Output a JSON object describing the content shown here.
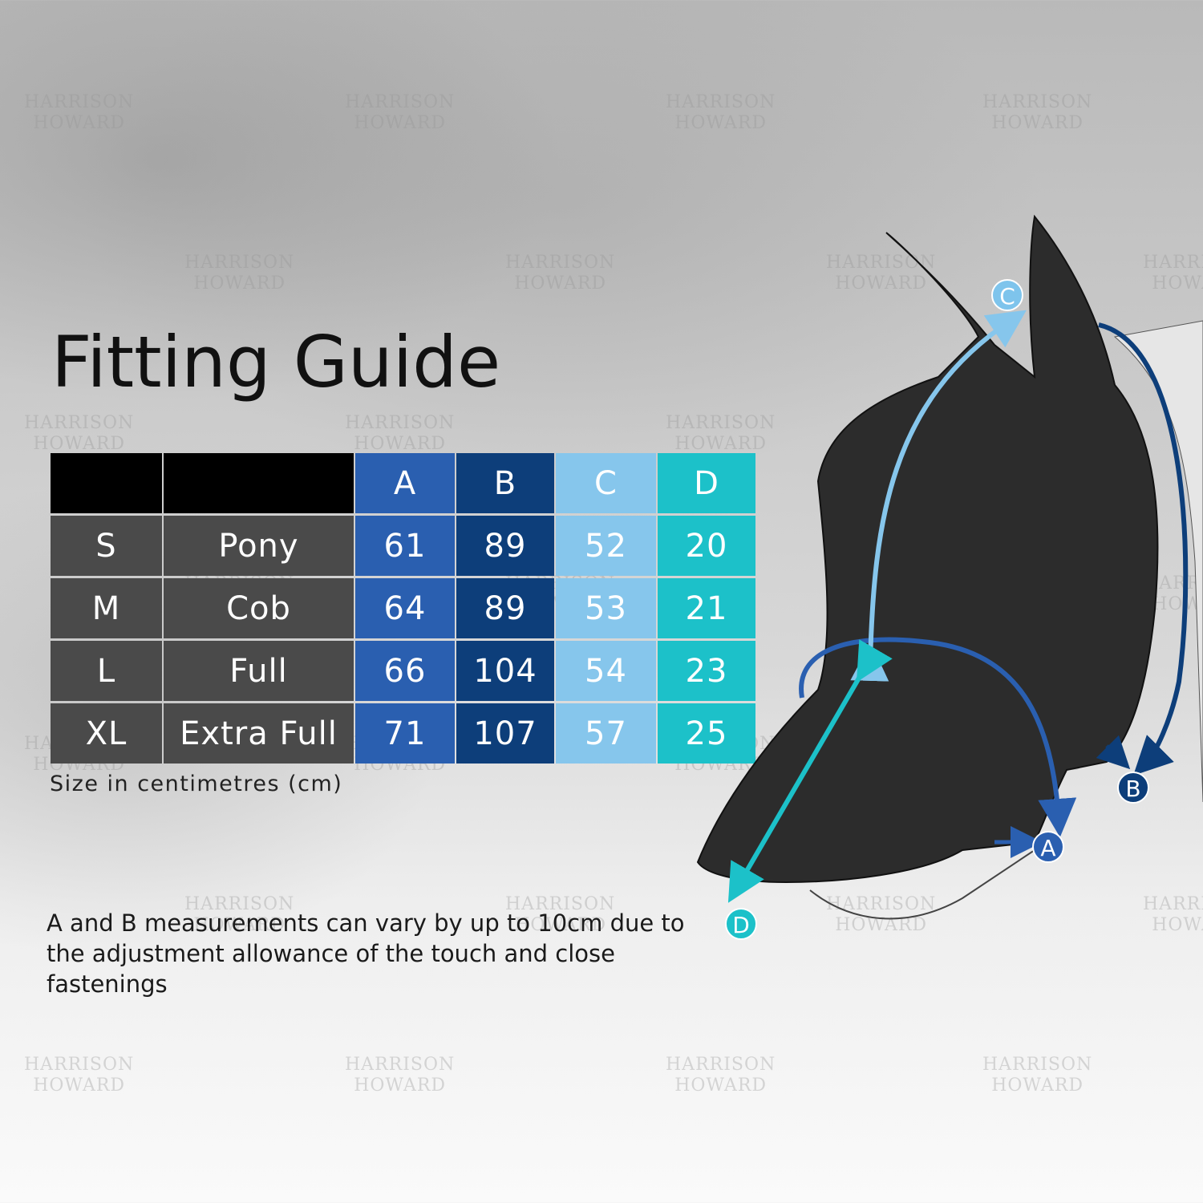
{
  "title": "Fitting Guide",
  "watermark": {
    "line1": "HARRISON",
    "line2": "HOWARD"
  },
  "table": {
    "headers": [
      "",
      "",
      "A",
      "B",
      "C",
      "D"
    ],
    "rows": [
      [
        "S",
        "Pony",
        "61",
        "89",
        "52",
        "20"
      ],
      [
        "M",
        "Cob",
        "64",
        "89",
        "53",
        "21"
      ],
      [
        "L",
        "Full",
        "66",
        "104",
        "54",
        "23"
      ],
      [
        "XL",
        "Extra Full",
        "71",
        "107",
        "57",
        "25"
      ]
    ]
  },
  "unit_note": "Size in centimetres (cm)",
  "footnote": "A and B measurements can vary by up to 10cm due to the adjustment allowance of the touch and close fastenings",
  "diagram_labels": [
    {
      "letter": "A",
      "color": "#2a5fb0"
    },
    {
      "letter": "B",
      "color": "#0d3e7a"
    },
    {
      "letter": "C",
      "color": "#7ec4ec"
    },
    {
      "letter": "D",
      "color": "#1cc1c9"
    }
  ]
}
